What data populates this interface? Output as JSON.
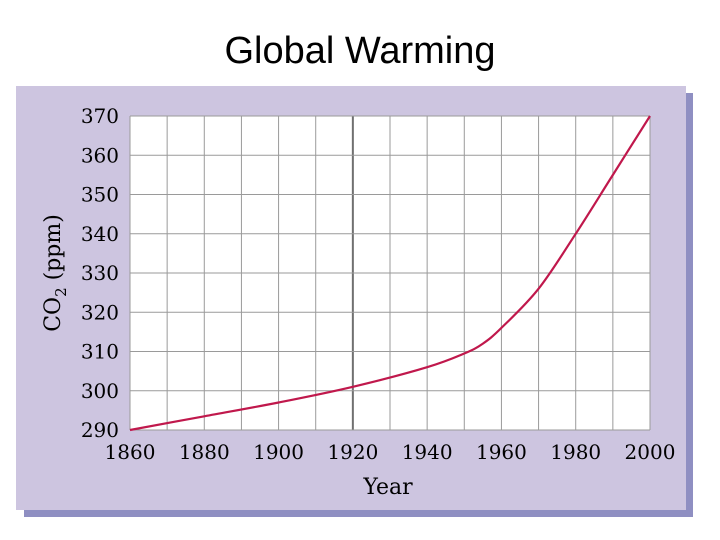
{
  "slide": {
    "title": "Global Warming"
  },
  "colors": {
    "panel_background": "#cdc5e0",
    "panel_shadow": "#8f8fc2",
    "plot_background": "#ffffff",
    "grid": "#9a9a9a",
    "line": "#c0184c"
  },
  "chart_data": {
    "type": "line",
    "title": "",
    "xlabel": "Year",
    "ylabel_main": "CO",
    "ylabel_sub": "2",
    "ylabel_rest": " (ppm)",
    "xlim": [
      1860,
      2000
    ],
    "ylim": [
      290,
      370
    ],
    "x_ticks": [
      1860,
      1880,
      1900,
      1920,
      1940,
      1960,
      1980,
      2000
    ],
    "y_ticks": [
      290,
      300,
      310,
      320,
      330,
      340,
      350,
      360,
      370
    ],
    "grid": true,
    "series": [
      {
        "x": [
          1860,
          1880,
          1900,
          1920,
          1940,
          1950,
          1955,
          1960,
          1970,
          1980,
          1990,
          2000
        ],
        "y": [
          290,
          293.5,
          297,
          301,
          306,
          309.5,
          312,
          316,
          326,
          340,
          355,
          370
        ]
      }
    ]
  }
}
